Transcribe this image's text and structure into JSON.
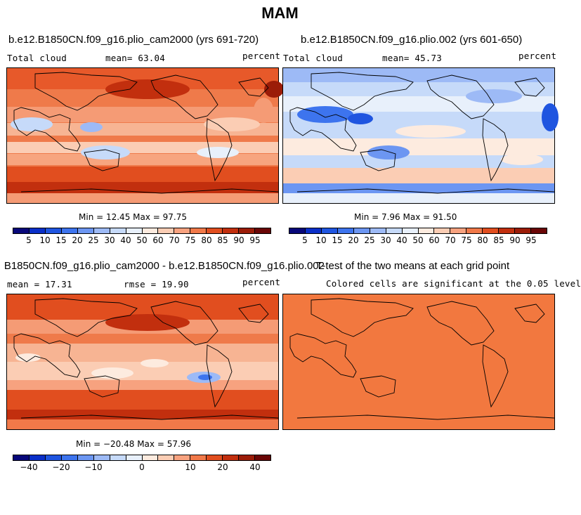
{
  "title": "MAM",
  "colorbar_colors": [
    "#08087a",
    "#0a2fc8",
    "#1f55e0",
    "#3d74ee",
    "#6c96f2",
    "#9dbaf6",
    "#c6daf9",
    "#e8f0fb",
    "#fdebdf",
    "#fbcdb4",
    "#f7a27f",
    "#f17949",
    "#e14e1f",
    "#c22f0e",
    "#9b1c08",
    "#6a0606"
  ],
  "panels": {
    "top_left": {
      "title": "b.e12.B1850CN.f09_g16.plio_cam2000 (yrs 691-720)",
      "variable": "Total cloud",
      "mean_text": "mean=  63.04",
      "units": "percent",
      "minmax": "Min =   12.45 Max =   97.75",
      "ticks": [
        "5",
        "10",
        "15",
        "20",
        "25",
        "30",
        "40",
        "50",
        "60",
        "70",
        "75",
        "80",
        "85",
        "90",
        "95"
      ]
    },
    "top_right": {
      "title": "b.e12.B1850CN.f09_g16.plio.002 (yrs 601-650)",
      "variable": "Total cloud",
      "mean_text": "mean=  45.73",
      "units": "percent",
      "minmax": "Min =    7.96 Max =   91.50",
      "ticks": [
        "5",
        "10",
        "15",
        "20",
        "25",
        "30",
        "40",
        "50",
        "60",
        "70",
        "75",
        "80",
        "85",
        "90",
        "95"
      ]
    },
    "bottom_left": {
      "title": "B1850CN.f09_g16.plio_cam2000 - b.e12.B1850CN.f09_g16.plio.002",
      "mean_text": "mean =  17.31",
      "rmse_text": "rmse =  19.90",
      "units": "percent",
      "minmax": "Min = −20.48 Max =  57.96",
      "ticks": [
        "−40",
        "−20",
        "−10",
        "0",
        "10",
        "20",
        "40"
      ]
    },
    "bottom_right": {
      "title": "T-test of the two means at each grid point",
      "subtitle": "Colored cells are significant at the 0.05 level",
      "fill_color": "#f2783f"
    }
  }
}
